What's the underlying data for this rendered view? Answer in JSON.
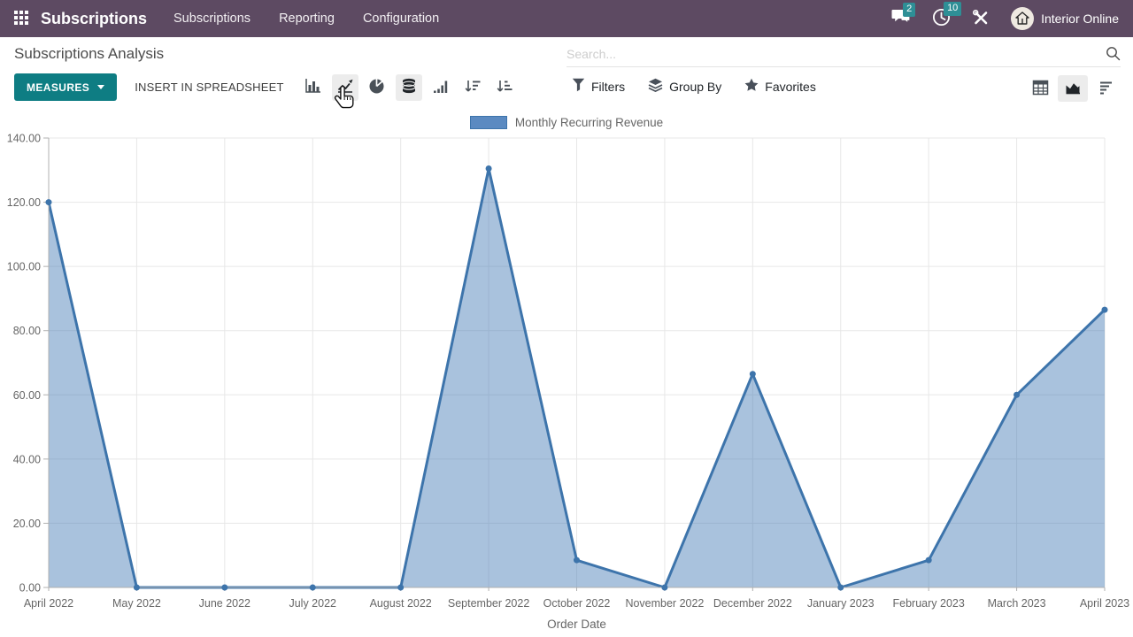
{
  "theme": {
    "navbar_bg": "#5d4a62",
    "accent_teal": "#0e7d83",
    "badge_teal": "#2e8f96",
    "active_button_bg": "#ececec",
    "line_color": "#3d74ab",
    "area_fill_color": "rgba(64,120,180,0.45)",
    "legend_swatch_fill": "#5b8ac1",
    "grid_color": "#e7e7e7",
    "axis_color": "#b0b0b0",
    "tick_text_color": "#666666"
  },
  "navbar": {
    "app_name": "Subscriptions",
    "menu_items": [
      "Subscriptions",
      "Reporting",
      "Configuration"
    ],
    "messages_badge": "2",
    "activities_badge": "10",
    "company_name": "Interior Online"
  },
  "control_panel": {
    "title": "Subscriptions Analysis",
    "search_placeholder": "Search...",
    "measures_label": "MEASURES",
    "insert_label": "INSERT IN SPREADSHEET",
    "filters_label": "Filters",
    "group_by_label": "Group By",
    "favorites_label": "Favorites",
    "viz_buttons": [
      "bar-chart",
      "line-chart",
      "pie-chart",
      "stacked",
      "cumulative",
      "sort-descending",
      "sort-ascending"
    ],
    "active_viz": [
      "line-chart",
      "stacked"
    ],
    "view_switcher": [
      "pivot",
      "graph",
      "list"
    ],
    "active_view": "graph"
  },
  "chart_data": {
    "type": "line",
    "legend": [
      "Monthly Recurring Revenue"
    ],
    "legend_position": "top-center",
    "x": [
      "April 2022",
      "May 2022",
      "June 2022",
      "July 2022",
      "August 2022",
      "September 2022",
      "October 2022",
      "November 2022",
      "December 2022",
      "January 2023",
      "February 2023",
      "March 2023",
      "April 2023"
    ],
    "series": [
      {
        "name": "Monthly Recurring Revenue",
        "values": [
          120,
          0,
          0,
          0,
          0,
          130.5,
          8.5,
          0,
          66.5,
          0,
          8.5,
          60,
          86.5
        ]
      }
    ],
    "xlabel": "Order Date",
    "ylabel": "",
    "ylim": [
      0,
      140
    ],
    "yticks": [
      0,
      20,
      40,
      60,
      80,
      100,
      120,
      140
    ],
    "ytick_decimals": 2,
    "grid": true,
    "area_fill": true
  }
}
